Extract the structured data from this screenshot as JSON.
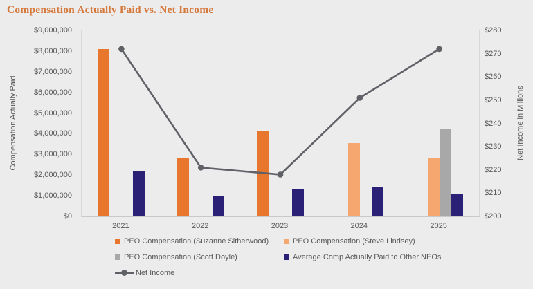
{
  "title": "Compensation Actually Paid vs. Net Income",
  "colors": {
    "background": "#ECECEC",
    "title": "#D6793C",
    "text": "#595959",
    "axis_line": "#D8D8D8",
    "orange": "#E8762C",
    "peach": "#F5A76F",
    "gray": "#A8A8A8",
    "navy": "#2A2076",
    "line": "#5F6167"
  },
  "left_axis": {
    "title": "Compensation Actually Paid",
    "ticks": [
      "$9,000,000",
      "$8,000,000",
      "$7,000,000",
      "$6,000,000",
      "$5,000,000",
      "$4,000,000",
      "$3,000,000",
      "$2,000,000",
      "$1,000,000",
      "$0"
    ]
  },
  "right_axis": {
    "title": "Net Income in Millions",
    "ticks": [
      "$280",
      "$270",
      "$260",
      "$250",
      "$240",
      "$230",
      "$220",
      "$210",
      "$200"
    ]
  },
  "chart_data": {
    "type": "bar+line combo, dual axis",
    "categories": [
      "2021",
      "2022",
      "2023",
      "2024",
      "2025"
    ],
    "left_ylim": [
      0,
      9000000
    ],
    "right_ylim": [
      200,
      280
    ],
    "grid": false,
    "legend_position": "bottom",
    "series": [
      {
        "name": "PEO Compensation (Suzanne Sitherwood)",
        "type": "bar",
        "axis": "left",
        "color": "#E8762C",
        "values": [
          8100000,
          2850000,
          4100000,
          null,
          null
        ]
      },
      {
        "name": "PEO Compensation (Steve Lindsey)",
        "type": "bar",
        "axis": "left",
        "color": "#F5A76F",
        "values": [
          null,
          null,
          null,
          3550000,
          2800000
        ]
      },
      {
        "name": "PEO Compensation (Scott Doyle)",
        "type": "bar",
        "axis": "left",
        "color": "#A8A8A8",
        "values": [
          null,
          null,
          null,
          null,
          4250000
        ]
      },
      {
        "name": "Average Comp Actually Paid to Other NEOs",
        "type": "bar",
        "axis": "left",
        "color": "#2A2076",
        "values": [
          2200000,
          1000000,
          1300000,
          1400000,
          1100000
        ]
      },
      {
        "name": "Net Income",
        "type": "line",
        "axis": "right",
        "color": "#5F6167",
        "values": [
          272,
          221,
          218,
          251,
          272
        ]
      }
    ]
  },
  "legend": {
    "rows": [
      [
        {
          "label": "PEO Compensation (Suzanne Sitherwood)",
          "marker": "square",
          "color": "#E8762C"
        },
        {
          "label": "PEO Compensation (Steve Lindsey)",
          "marker": "square",
          "color": "#F5A76F"
        }
      ],
      [
        {
          "label": "PEO Compensation (Scott Doyle)",
          "marker": "square",
          "color": "#A8A8A8"
        },
        {
          "label": "Average Comp Actually Paid to Other NEOs",
          "marker": "square",
          "color": "#2A2076"
        }
      ],
      [
        {
          "label": "Net Income",
          "marker": "line",
          "color": "#5F6167"
        }
      ]
    ]
  }
}
